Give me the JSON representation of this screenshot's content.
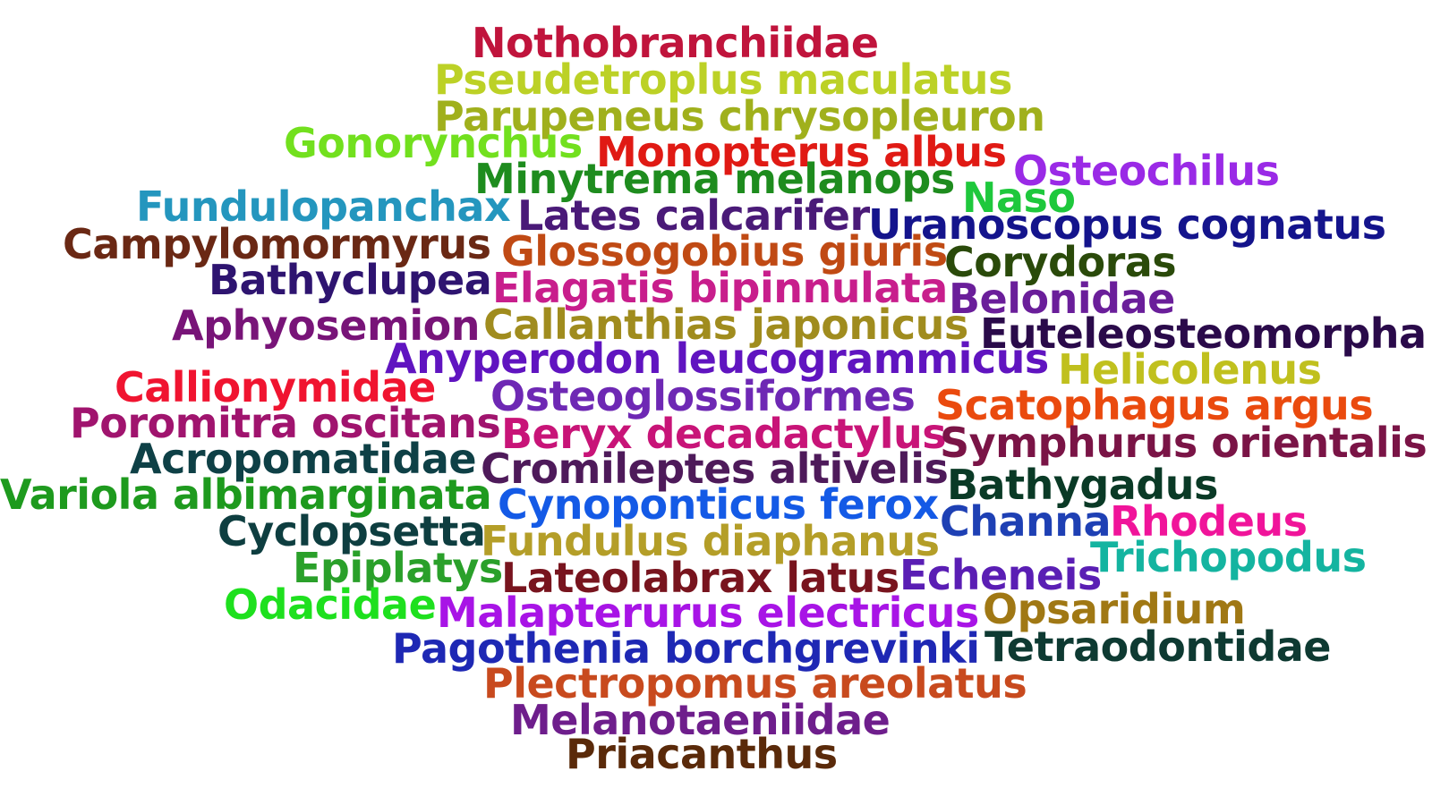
{
  "words": [
    {
      "text": "Nothobranchiidae",
      "color": "#c0143c"
    },
    {
      "text": "Pseudetroplus maculatus",
      "color": "#bcd126"
    },
    {
      "text": "Parupeneus chrysopleuron",
      "color": "#a0b01c"
    },
    {
      "text": "Gonorynchus",
      "color": "#72e01e"
    },
    {
      "text": "Monopterus albus",
      "color": "#e01a14"
    },
    {
      "text": "Osteochilus",
      "color": "#9a2ae6"
    },
    {
      "text": "Minytrema melanops",
      "color": "#1e8c1e"
    },
    {
      "text": "Naso",
      "color": "#1ec83c"
    },
    {
      "text": "Fundulopanchax",
      "color": "#2496be"
    },
    {
      "text": "Lates calcarifer",
      "color": "#4a1a78"
    },
    {
      "text": "Uranoscopus cognatus",
      "color": "#14148c"
    },
    {
      "text": "Campylomormyrus",
      "color": "#6a2814"
    },
    {
      "text": "Glossogobius giuris",
      "color": "#c04a14"
    },
    {
      "text": "Corydoras",
      "color": "#2a4a0a"
    },
    {
      "text": "Bathyclupea",
      "color": "#2e1470"
    },
    {
      "text": "Elagatis bipinnulata",
      "color": "#c81e8c"
    },
    {
      "text": "Belonidae",
      "color": "#6a1e9a"
    },
    {
      "text": "Aphyosemion",
      "color": "#781478"
    },
    {
      "text": "Callanthias japonicus",
      "color": "#a08c1e"
    },
    {
      "text": "Euteleosteomorpha",
      "color": "#2a0a4a"
    },
    {
      "text": "Anyperodon leucogrammicus",
      "color": "#6014c0"
    },
    {
      "text": "Helicolenus",
      "color": "#c0c01e"
    },
    {
      "text": "Callionymidae",
      "color": "#f01430"
    },
    {
      "text": "Osteoglossiformes",
      "color": "#6e28b4"
    },
    {
      "text": "Scatophagus argus",
      "color": "#ea4a0e"
    },
    {
      "text": "Poromitra oscitans",
      "color": "#a0146e"
    },
    {
      "text": "Beryx decadactylus",
      "color": "#c81478"
    },
    {
      "text": "Symphurus orientalis",
      "color": "#7a1446"
    },
    {
      "text": "Acropomatidae",
      "color": "#0e4046"
    },
    {
      "text": "Cromileptes altivelis",
      "color": "#4e1a5a"
    },
    {
      "text": "Bathygadus",
      "color": "#0a3a26"
    },
    {
      "text": "Variola albimarginata",
      "color": "#1e9a1e"
    },
    {
      "text": "Cynoponticus ferox",
      "color": "#145ae6"
    },
    {
      "text": "Channa",
      "color": "#1e40b4"
    },
    {
      "text": "Rhodeus",
      "color": "#f0149a"
    },
    {
      "text": "Cyclopsetta",
      "color": "#0e3e40"
    },
    {
      "text": "Fundulus diaphanus",
      "color": "#b49e28"
    },
    {
      "text": "Trichopodus",
      "color": "#14b4a0"
    },
    {
      "text": "Epiplatys",
      "color": "#2aa02a"
    },
    {
      "text": "Lateolabrax latus",
      "color": "#78141e"
    },
    {
      "text": "Echeneis",
      "color": "#5a1eb4"
    },
    {
      "text": "Odacidae",
      "color": "#1ee01e"
    },
    {
      "text": "Malapterurus electricus",
      "color": "#a814e6"
    },
    {
      "text": "Opsaridium",
      "color": "#a07814"
    },
    {
      "text": "Pagothenia borchgrevinki",
      "color": "#1e28b4"
    },
    {
      "text": "Tetraodontidae",
      "color": "#0e3a32"
    },
    {
      "text": "Plectropomus areolatus",
      "color": "#c84a1e"
    },
    {
      "text": "Melanotaeniidae",
      "color": "#6e1e8c"
    },
    {
      "text": "Priacanthus",
      "color": "#5a2a0a"
    }
  ]
}
